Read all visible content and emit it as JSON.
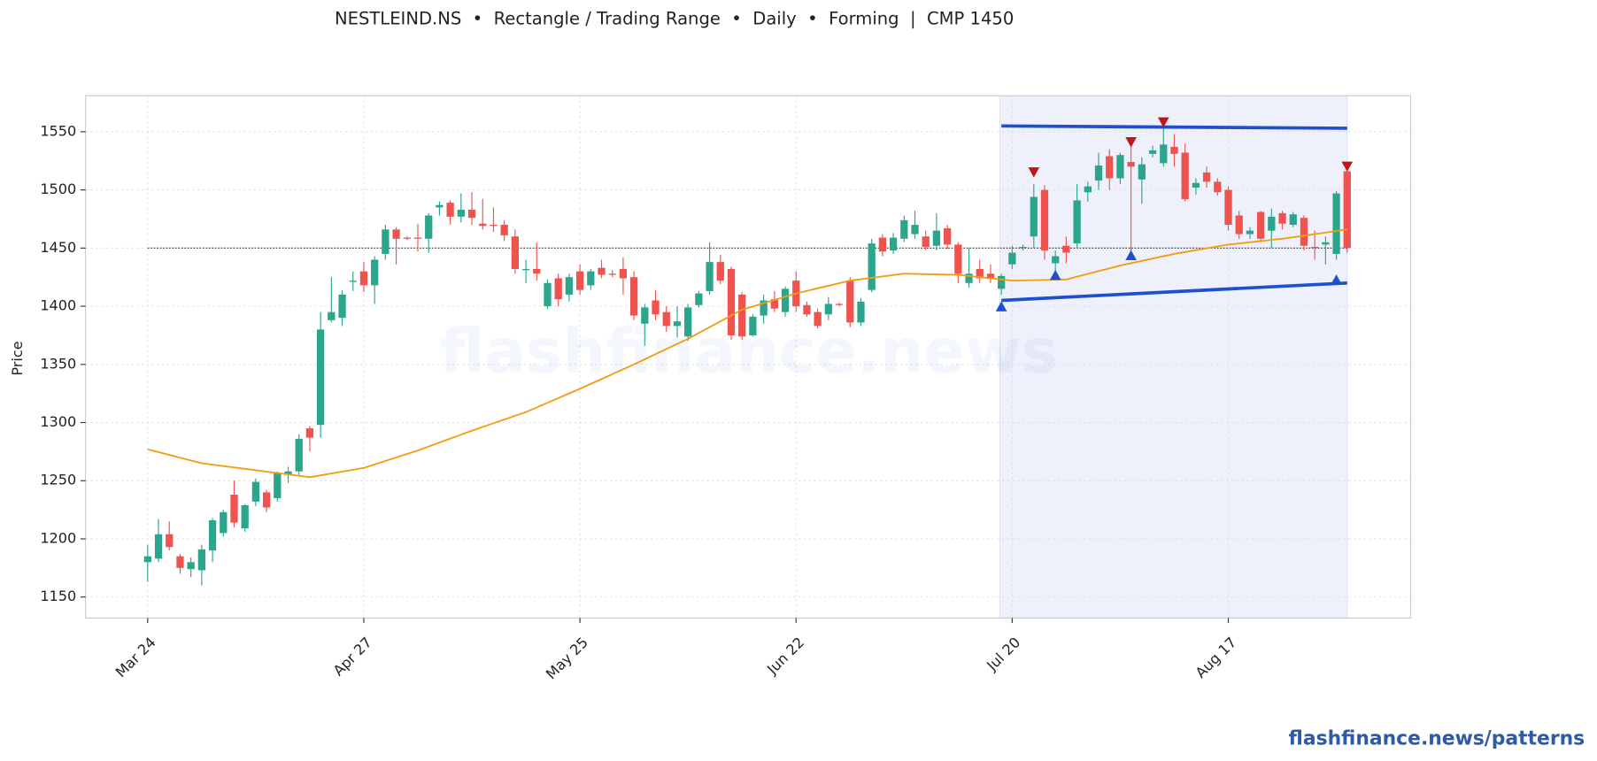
{
  "chart_data": {
    "type": "candlestick",
    "title": "NESTLEIND.NS  •  Rectangle / Trading Range  •  Daily  •  Forming  |  CMP 1450",
    "y_label": "Price",
    "watermark": "flashfinance.news",
    "source": "flashfinance.news/patterns",
    "categories": [
      "Mar 24",
      null,
      null,
      null,
      null,
      null,
      null,
      null,
      null,
      null,
      null,
      null,
      null,
      null,
      null,
      null,
      null,
      null,
      null,
      null,
      "Apr 27",
      null,
      null,
      null,
      null,
      null,
      null,
      null,
      null,
      null,
      null,
      null,
      null,
      null,
      null,
      null,
      null,
      null,
      null,
      null,
      "May 25",
      null,
      null,
      null,
      null,
      null,
      null,
      null,
      null,
      null,
      null,
      null,
      null,
      null,
      null,
      null,
      null,
      null,
      null,
      null,
      "Jun 22",
      null,
      null,
      null,
      null,
      null,
      null,
      null,
      null,
      null,
      null,
      null,
      null,
      null,
      null,
      null,
      null,
      null,
      null,
      null,
      "Jul 20",
      null,
      null,
      null,
      null,
      null,
      null,
      null,
      null,
      null,
      null,
      null,
      null,
      null,
      null,
      null,
      null,
      null,
      null,
      null,
      "Aug 17",
      null,
      null,
      null,
      null,
      null,
      null,
      null,
      null,
      null,
      null,
      null
    ],
    "open": [
      1180,
      1183,
      1204,
      1185,
      1174,
      1173,
      1190,
      1205,
      1238,
      1209,
      1232,
      1240,
      1235,
      1255,
      1258,
      1295,
      1298,
      1388,
      1390,
      1421,
      1430,
      1418,
      1445,
      1466,
      1459,
      1459,
      1458,
      1485,
      1489,
      1477,
      1483,
      1471,
      1470,
      1470,
      1460,
      1431,
      1432,
      1400,
      1424,
      1410,
      1430,
      1418,
      1433,
      1428,
      1432,
      1425,
      1385,
      1405,
      1395,
      1383,
      1374,
      1401,
      1413,
      1438,
      1432,
      1410,
      1375,
      1392,
      1406,
      1395,
      1422,
      1401,
      1395,
      1393,
      1402,
      1422,
      1386,
      1414,
      1459,
      1448,
      1458,
      1462,
      1460,
      1452,
      1467,
      1453,
      1420,
      1432,
      1428,
      1415,
      1436,
      1450,
      1460,
      1500,
      1437,
      1452,
      1454,
      1498,
      1508,
      1529,
      1510,
      1524,
      1509,
      1531,
      1523,
      1537,
      1532,
      1502,
      1515,
      1507,
      1500,
      1478,
      1462,
      1481,
      1465,
      1480,
      1470,
      1476,
      1451,
      1453,
      1445,
      1516
    ],
    "high": [
      1195,
      1217,
      1215,
      1187,
      1184,
      1195,
      1218,
      1225,
      1250,
      1230,
      1252,
      1242,
      1258,
      1262,
      1290,
      1297,
      1395,
      1425,
      1414,
      1430,
      1438,
      1443,
      1470,
      1468,
      1460,
      1471,
      1480,
      1490,
      1491,
      1497,
      1498,
      1492,
      1485,
      1474,
      1466,
      1440,
      1455,
      1423,
      1428,
      1428,
      1436,
      1432,
      1440,
      1431,
      1442,
      1430,
      1402,
      1414,
      1400,
      1400,
      1402,
      1413,
      1455,
      1444,
      1434,
      1412,
      1393,
      1410,
      1413,
      1417,
      1430,
      1404,
      1398,
      1408,
      1403,
      1425,
      1407,
      1458,
      1462,
      1463,
      1478,
      1482,
      1465,
      1480,
      1470,
      1455,
      1450,
      1440,
      1436,
      1428,
      1452,
      1453,
      1505,
      1504,
      1448,
      1460,
      1505,
      1507,
      1532,
      1535,
      1532,
      1540,
      1528,
      1538,
      1557,
      1548,
      1540,
      1510,
      1520,
      1510,
      1503,
      1482,
      1468,
      1482,
      1484,
      1482,
      1481,
      1478,
      1465,
      1460,
      1499,
      1518
    ],
    "low": [
      1163,
      1180,
      1190,
      1170,
      1167,
      1160,
      1180,
      1202,
      1210,
      1206,
      1228,
      1223,
      1232,
      1248,
      1255,
      1275,
      1287,
      1386,
      1383,
      1413,
      1412,
      1402,
      1440,
      1436,
      1457,
      1447,
      1446,
      1478,
      1470,
      1472,
      1470,
      1466,
      1464,
      1456,
      1428,
      1420,
      1422,
      1398,
      1400,
      1404,
      1410,
      1414,
      1424,
      1425,
      1410,
      1388,
      1366,
      1388,
      1378,
      1373,
      1370,
      1399,
      1410,
      1419,
      1371,
      1371,
      1374,
      1385,
      1395,
      1391,
      1395,
      1391,
      1381,
      1388,
      1400,
      1382,
      1383,
      1412,
      1443,
      1445,
      1455,
      1458,
      1448,
      1448,
      1449,
      1420,
      1416,
      1420,
      1420,
      1410,
      1432,
      1448,
      1450,
      1440,
      1430,
      1437,
      1450,
      1490,
      1500,
      1500,
      1505,
      1445,
      1488,
      1528,
      1520,
      1520,
      1490,
      1496,
      1502,
      1495,
      1465,
      1458,
      1458,
      1455,
      1450,
      1466,
      1468,
      1448,
      1440,
      1436,
      1440,
      1446
    ],
    "close": [
      1185,
      1204,
      1193,
      1175,
      1180,
      1191,
      1216,
      1223,
      1214,
      1229,
      1249,
      1227,
      1257,
      1258,
      1286,
      1287,
      1380,
      1395,
      1410,
      1422,
      1418,
      1440,
      1466,
      1458,
      1458,
      1458,
      1478,
      1487,
      1477,
      1483,
      1476,
      1469,
      1469,
      1461,
      1432,
      1432,
      1428,
      1420,
      1406,
      1425,
      1414,
      1430,
      1427,
      1427,
      1424,
      1392,
      1399,
      1393,
      1383,
      1387,
      1399,
      1411,
      1438,
      1422,
      1375,
      1374,
      1391,
      1405,
      1398,
      1415,
      1400,
      1393,
      1383,
      1402,
      1401,
      1386,
      1404,
      1454,
      1447,
      1459,
      1474,
      1470,
      1451,
      1465,
      1453,
      1428,
      1428,
      1424,
      1424,
      1426,
      1446,
      1451,
      1494,
      1448,
      1443,
      1446,
      1491,
      1503,
      1521,
      1510,
      1530,
      1520,
      1522,
      1534,
      1539,
      1531,
      1492,
      1506,
      1507,
      1498,
      1470,
      1462,
      1465,
      1458,
      1477,
      1471,
      1479,
      1452,
      1450,
      1455,
      1497,
      1450
    ],
    "up_color": "#2ca58d",
    "down_color": "#ef5350",
    "moving_average": {
      "color": "#f39c12",
      "values": [
        1277,
        1274.6,
        1272.2,
        1269.8,
        1267.4,
        1265,
        1263.8,
        1262.6,
        1261.4,
        1260.2,
        1259,
        1257.8,
        1256.6,
        1255.4,
        1254.2,
        1253,
        1254.6,
        1256.2,
        1257.8,
        1259.4,
        1261,
        1264,
        1267,
        1270,
        1273,
        1276,
        1279.4,
        1282.8,
        1286.2,
        1289.6,
        1293,
        1296.2,
        1299.4,
        1302.6,
        1305.8,
        1309,
        1313,
        1317,
        1321,
        1325,
        1329,
        1333.2,
        1337.4,
        1341.6,
        1345.8,
        1350,
        1354.4,
        1358.8,
        1363.2,
        1367.6,
        1372,
        1377,
        1382,
        1387,
        1392,
        1397,
        1399.8,
        1402.6,
        1405.4,
        1408.2,
        1411,
        1413.2,
        1415.4,
        1417.6,
        1419.8,
        1422,
        1423.2,
        1424.4,
        1425.6,
        1426.8,
        1428,
        1427.8,
        1427.6,
        1427.4,
        1427.2,
        1427,
        1426,
        1425,
        1424,
        1423,
        1422,
        1422.2,
        1422.4,
        1422.6,
        1422.8,
        1423,
        1425.4,
        1427.8,
        1430.2,
        1432.6,
        1435,
        1437,
        1439,
        1441,
        1443,
        1445,
        1446.6,
        1448.2,
        1449.8,
        1451.4,
        1453,
        1454,
        1455,
        1456,
        1457,
        1458,
        1459.3,
        1460.7,
        1462,
        1463.3,
        1464.7,
        1466
      ]
    },
    "reference_line": 1450,
    "pattern": {
      "start": 79,
      "end": 111,
      "resistance": [
        1555,
        1553
      ],
      "support": [
        1405,
        1420
      ],
      "color": "#1f4fd1",
      "fill": "#eef1fb"
    },
    "peaks": {
      "x": [
        82,
        91,
        94,
        111
      ],
      "values": [
        1515,
        1541,
        1558,
        1520
      ],
      "color": "#c0161a"
    },
    "troughs": {
      "x": [
        79,
        84,
        91,
        110
      ],
      "values": [
        1400,
        1427,
        1444,
        1423
      ],
      "color": "#1f4fd1"
    },
    "ylim": [
      1132,
      1581
    ],
    "yticks": [
      1150,
      1200,
      1250,
      1300,
      1350,
      1400,
      1450,
      1500,
      1550
    ],
    "grid": true
  }
}
